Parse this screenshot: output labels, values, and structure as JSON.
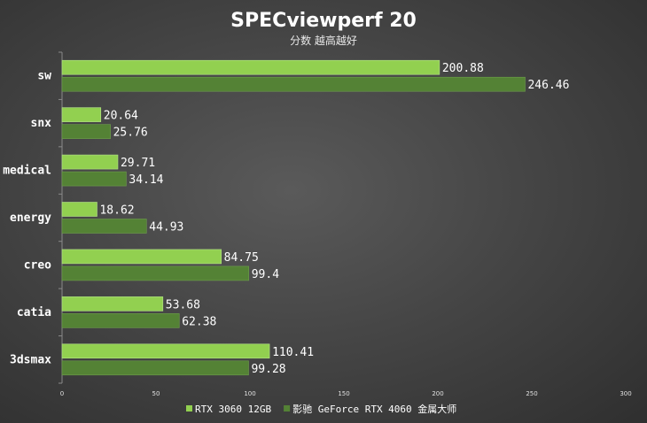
{
  "chart_data": {
    "type": "bar",
    "orientation": "horizontal",
    "title": "SPECviewperf 20",
    "subtitle": "分数 越高越好",
    "categories": [
      "sw",
      "snx",
      "medical",
      "energy",
      "creo",
      "catia",
      "3dsmax"
    ],
    "series": [
      {
        "name": "RTX 3060 12GB",
        "color": "#92d050",
        "values": [
          200.88,
          20.64,
          29.71,
          18.62,
          84.75,
          53.68,
          110.41
        ]
      },
      {
        "name": "影驰 GeForce RTX 4060 金属大师",
        "color": "#548235",
        "values": [
          246.46,
          25.76,
          34.14,
          44.93,
          99.4,
          62.38,
          99.28
        ]
      }
    ],
    "xlim": [
      0,
      300
    ],
    "xticks": [
      "0",
      "50",
      "100",
      "150",
      "200",
      "250",
      "300"
    ],
    "grid": false,
    "legend_position": "bottom"
  }
}
